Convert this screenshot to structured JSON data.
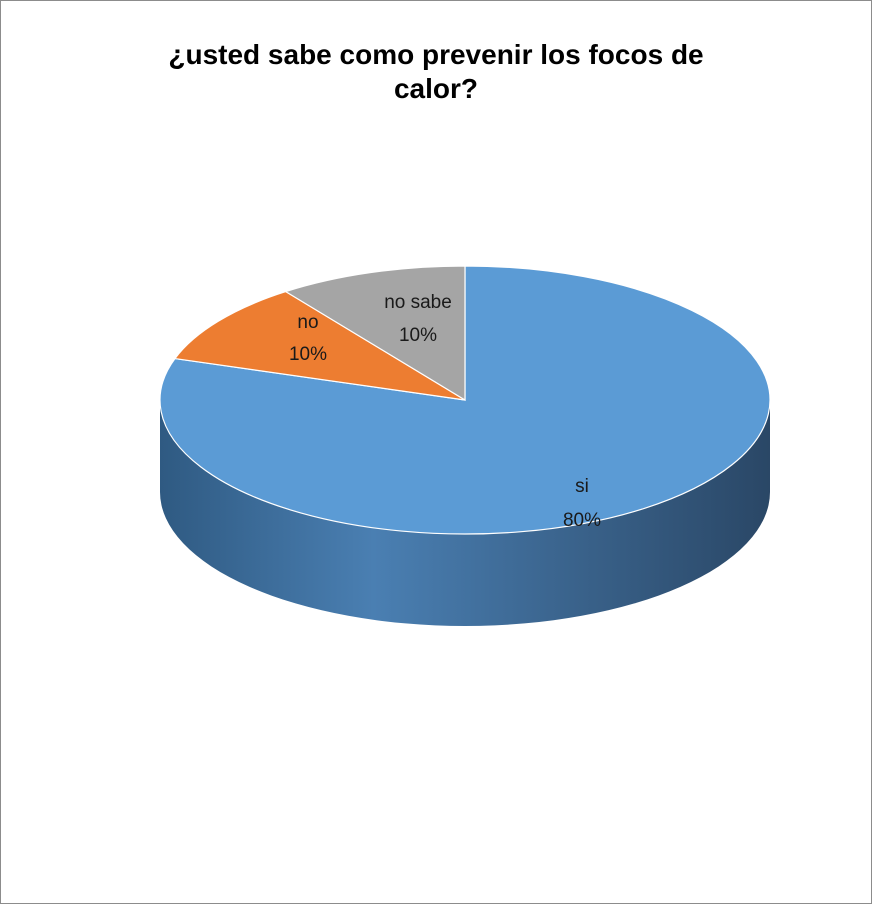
{
  "chart_data": {
    "type": "pie",
    "title": "¿usted sabe como prevenir los focos de calor?",
    "title_lines": [
      "¿usted sabe como prevenir los focos de",
      "calor?"
    ],
    "slices": [
      {
        "label": "si",
        "value": 80,
        "value_label": "80%",
        "color": "#5b9bd5",
        "side_color": "#3e6f9c"
      },
      {
        "label": "no",
        "value": 10,
        "value_label": "10%",
        "color": "#ed7d31",
        "side_color": "#a8561e"
      },
      {
        "label": "no sabe",
        "value": 10,
        "value_label": "10%",
        "color": "#a5a5a5",
        "side_color": "#777777"
      }
    ],
    "style": "3d-pie",
    "legend": "none"
  }
}
